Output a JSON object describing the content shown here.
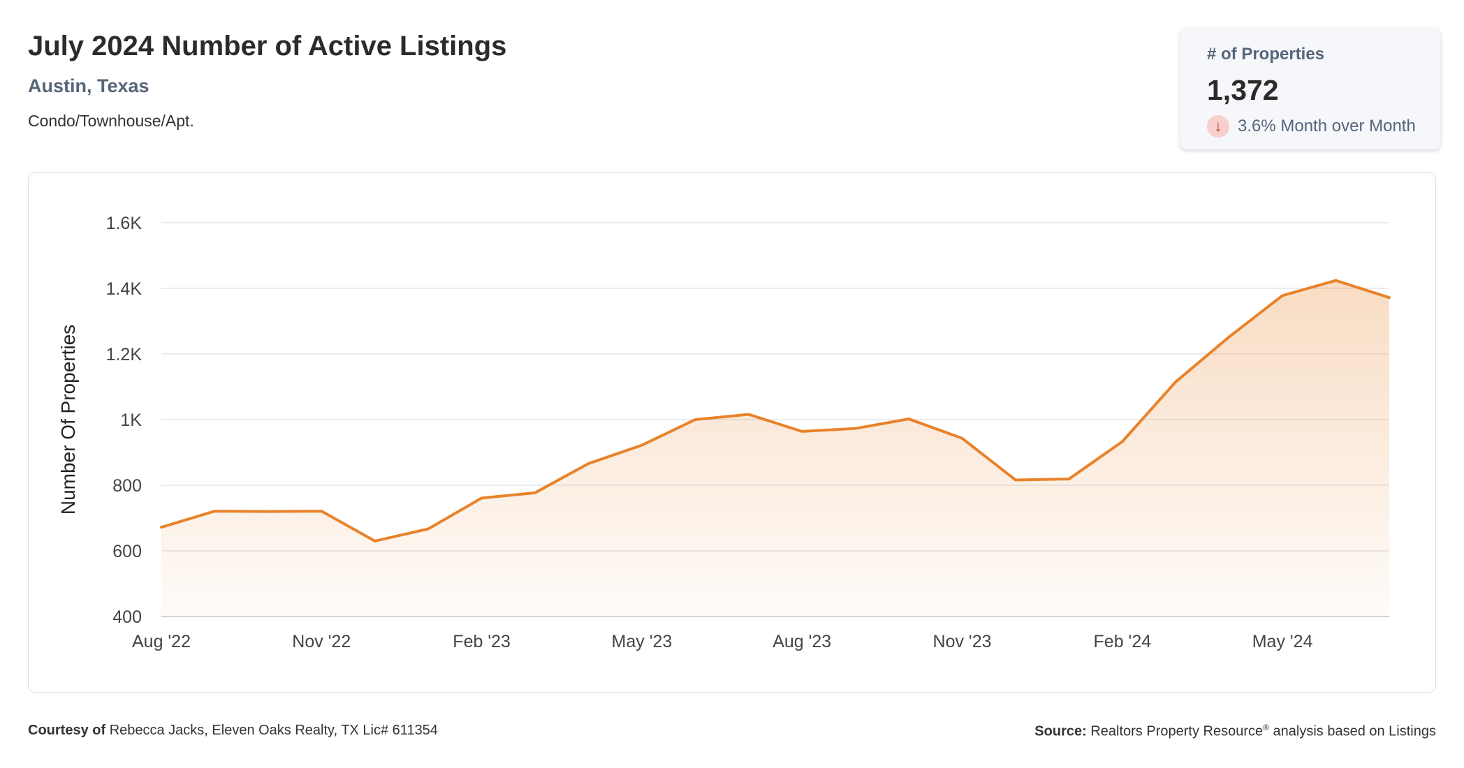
{
  "header": {
    "title": "July 2024 Number of Active Listings",
    "location": "Austin, Texas",
    "property_type": "Condo/Townhouse/Apt."
  },
  "kpi": {
    "label": "# of Properties",
    "value": "1,372",
    "change": "3.6% Month over Month",
    "direction_icon": "arrow-down-icon",
    "change_color": "#c0392b"
  },
  "footer": {
    "courtesy_label": "Courtesy of",
    "courtesy_text": "Rebecca Jacks, Eleven Oaks Realty, TX Lic# 611354",
    "source_label": "Source:",
    "source_text_1": "Realtors Property Resource",
    "source_mark": "®",
    "source_text_2": "analysis based on Listings"
  },
  "chart_data": {
    "type": "area",
    "title": "",
    "xlabel": "",
    "ylabel": "Number Of Properties",
    "ylim": [
      400,
      1600
    ],
    "yticks": [
      400,
      600,
      800,
      1000,
      1200,
      1400,
      1600
    ],
    "ytick_labels": [
      "400",
      "600",
      "800",
      "1K",
      "1.2K",
      "1.4K",
      "1.6K"
    ],
    "x": [
      "2022-08",
      "2022-09",
      "2022-10",
      "2022-11",
      "2022-12",
      "2023-01",
      "2023-02",
      "2023-03",
      "2023-04",
      "2023-05",
      "2023-06",
      "2023-07",
      "2023-08",
      "2023-09",
      "2023-10",
      "2023-11",
      "2023-12",
      "2024-01",
      "2024-02",
      "2024-03",
      "2024-04",
      "2024-05",
      "2024-06",
      "2024-07"
    ],
    "xtick_labels": [
      "Aug '22",
      "",
      "",
      "Nov '22",
      "",
      "",
      "Feb '23",
      "",
      "",
      "May '23",
      "",
      "",
      "Aug '23",
      "",
      "",
      "Nov '23",
      "",
      "",
      "Feb '24",
      "",
      "",
      "May '24",
      "",
      ""
    ],
    "series": [
      {
        "values": [
          672,
          721,
          720,
          721,
          630,
          667,
          761,
          777,
          866,
          922,
          1000,
          1016,
          964,
          973,
          1002,
          943,
          816,
          819,
          933,
          1115,
          1252,
          1378,
          1424,
          1372
        ]
      }
    ],
    "line_color": "#e8832a",
    "grid": true,
    "legend": "none"
  }
}
